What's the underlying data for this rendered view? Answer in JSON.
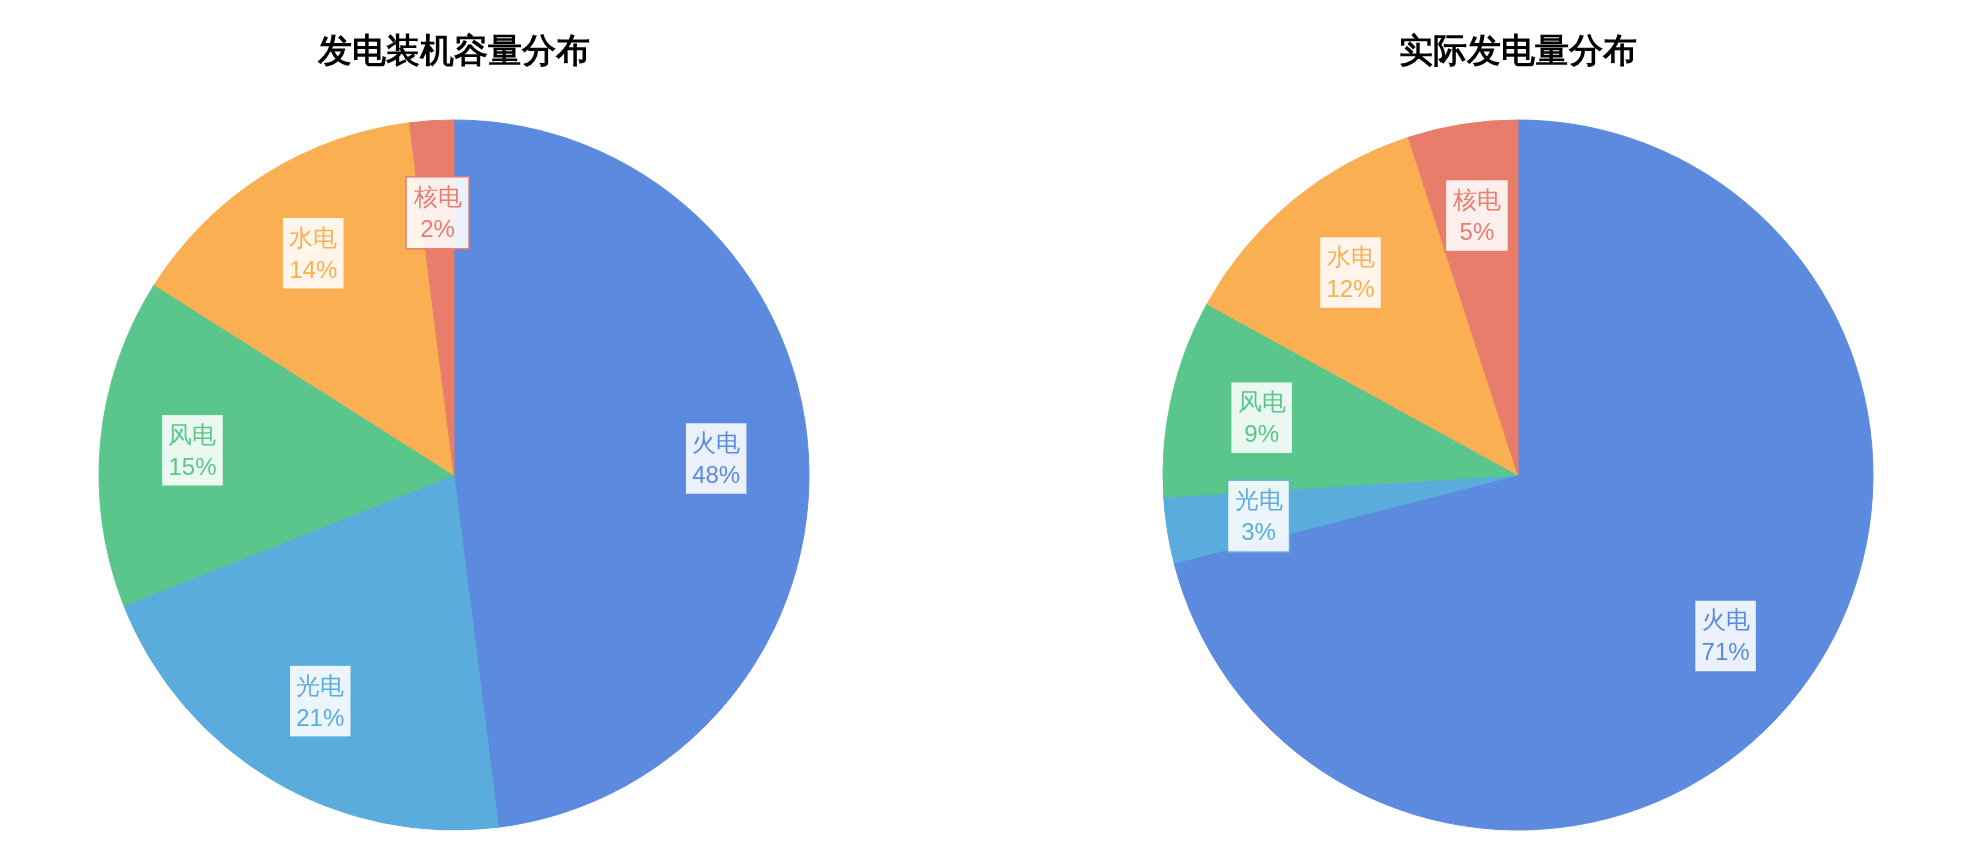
{
  "chart_data": [
    {
      "type": "pie",
      "title": "发电装机容量分布",
      "categories": [
        "火电",
        "光电",
        "风电",
        "水电",
        "核电"
      ],
      "values": [
        48,
        21,
        15,
        14,
        2
      ],
      "value_labels": [
        "48%",
        "21%",
        "15%",
        "14%",
        "2%"
      ],
      "colors": [
        "#5b8ade",
        "#5aacdc",
        "#5ac68b",
        "#f9af52",
        "#e87d6b"
      ]
    },
    {
      "type": "pie",
      "title": "实际发电量分布",
      "categories": [
        "火电",
        "光电",
        "风电",
        "水电",
        "核电"
      ],
      "values": [
        71,
        3,
        9,
        12,
        5
      ],
      "value_labels": [
        "71%",
        "3%",
        "9%",
        "12%",
        "5%"
      ],
      "colors": [
        "#5b8ade",
        "#5aacdc",
        "#5ac68b",
        "#f9af52",
        "#e87d6b"
      ]
    }
  ]
}
